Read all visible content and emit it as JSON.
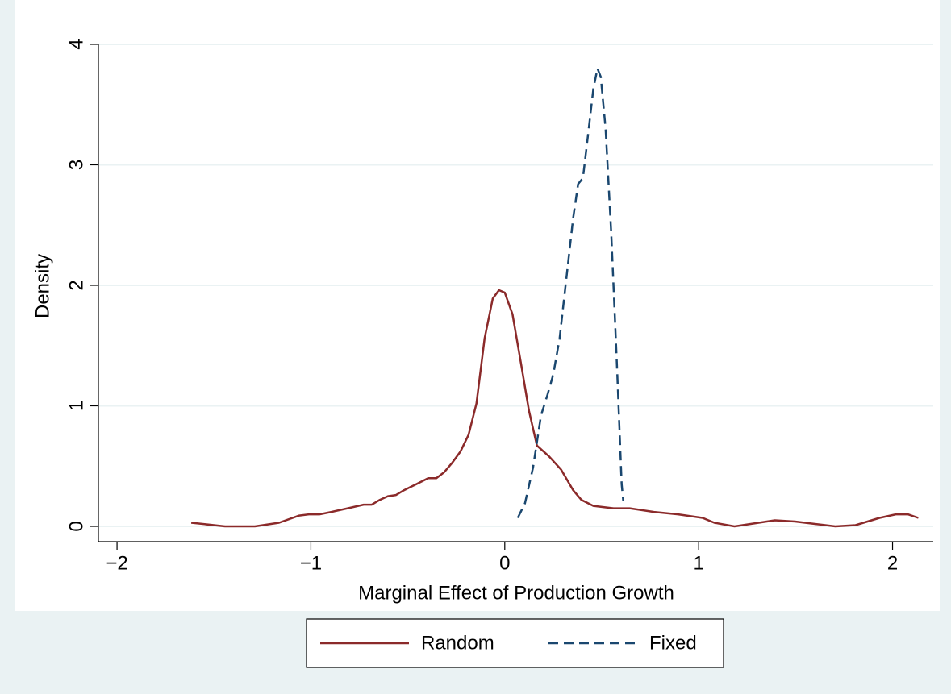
{
  "chart_data": {
    "type": "line",
    "x_label": "Marginal Effect of Production Growth",
    "y_label": "Density",
    "xlim": [
      -2.096,
      2.21
    ],
    "ylim": [
      -0.127,
      4.147
    ],
    "xticks": [
      {
        "value": -2,
        "label": "−2"
      },
      {
        "value": -1,
        "label": "−1"
      },
      0,
      1,
      2
    ],
    "yticks": [
      0,
      1,
      2,
      3,
      4
    ],
    "grid": true,
    "legend": "bottom",
    "series": [
      {
        "name": "Random",
        "color": "#8b2a2a",
        "dash": false,
        "x": [
          -1.617,
          -1.443,
          -1.289,
          -1.164,
          -1.06,
          -1.01,
          -0.956,
          -0.894,
          -0.81,
          -0.728,
          -0.686,
          -0.644,
          -0.603,
          -0.561,
          -0.52,
          -0.457,
          -0.395,
          -0.353,
          -0.312,
          -0.27,
          -0.229,
          -0.187,
          -0.146,
          -0.104,
          -0.062,
          -0.03,
          0,
          0.04,
          0.083,
          0.125,
          0.166,
          0.229,
          0.291,
          0.353,
          0.395,
          0.457,
          0.561,
          0.644,
          0.769,
          0.894,
          1.02,
          1.081,
          1.185,
          1.268,
          1.393,
          1.497,
          1.6,
          1.705,
          1.809,
          1.933,
          2.017,
          2.079,
          2.133
        ],
        "values": [
          0.03,
          0,
          0,
          0.03,
          0.09,
          0.1,
          0.1,
          0.12,
          0.15,
          0.18,
          0.18,
          0.22,
          0.25,
          0.26,
          0.3,
          0.35,
          0.4,
          0.4,
          0.45,
          0.53,
          0.62,
          0.76,
          1.02,
          1.56,
          1.89,
          1.96,
          1.94,
          1.76,
          1.36,
          0.96,
          0.67,
          0.58,
          0.47,
          0.3,
          0.22,
          0.17,
          0.15,
          0.15,
          0.12,
          0.1,
          0.07,
          0.03,
          0,
          0.02,
          0.05,
          0.04,
          0.02,
          0,
          0.01,
          0.07,
          0.1,
          0.1,
          0.07
        ]
      },
      {
        "name": "Fixed",
        "color": "#1a476f",
        "dash": true,
        "x": [
          0.067,
          0.104,
          0.146,
          0.187,
          0.22,
          0.25,
          0.283,
          0.32,
          0.353,
          0.378,
          0.403,
          0.428,
          0.457,
          0.478,
          0.495,
          0.52,
          0.549,
          0.578,
          0.603,
          0.611
        ],
        "values": [
          0.07,
          0.19,
          0.49,
          0.92,
          1.09,
          1.26,
          1.56,
          2.09,
          2.56,
          2.84,
          2.89,
          3.23,
          3.63,
          3.8,
          3.73,
          3.3,
          2.43,
          1.36,
          0.35,
          0.21
        ]
      }
    ]
  }
}
